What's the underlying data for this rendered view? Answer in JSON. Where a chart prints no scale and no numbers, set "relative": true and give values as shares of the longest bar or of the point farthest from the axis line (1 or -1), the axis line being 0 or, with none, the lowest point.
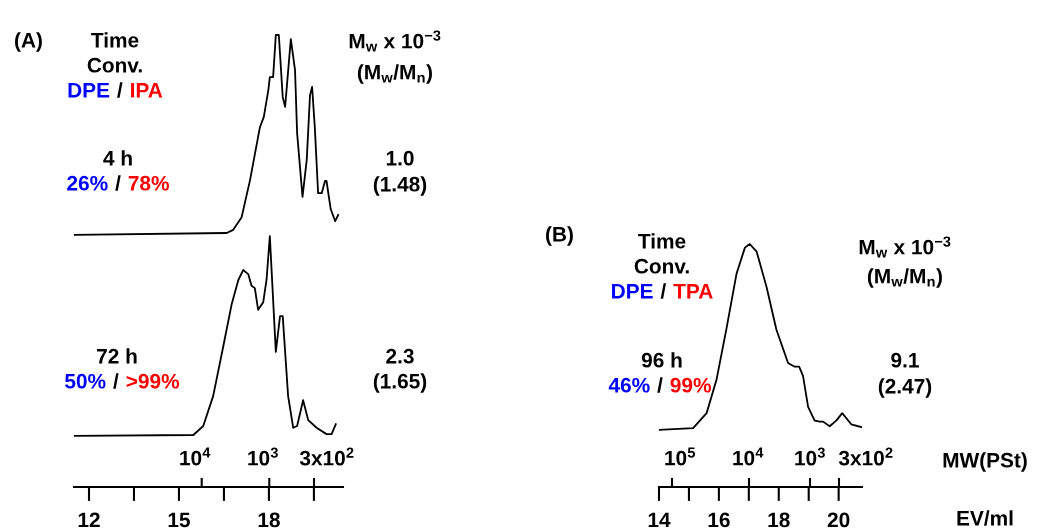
{
  "chart_data": [
    {
      "type": "line",
      "relative": true,
      "xlim": [
        11.5,
        20.47
      ],
      "xticks": [
        12,
        {
          "value": 13.5,
          "label": null
        },
        15,
        {
          "value": 16.5,
          "label": null
        },
        18,
        {
          "value": 19.5,
          "label": null
        }
      ],
      "series": [
        {
          "color": "#000000",
          "x": [
            11.5,
            16.59,
            16.81,
            17.09,
            17.37,
            17.7,
            17.83,
            17.98,
            18.03,
            18.14,
            18.23,
            18.33,
            18.46,
            18.54,
            18.73,
            18.87,
            18.94,
            19.12,
            19.26,
            19.37,
            19.44,
            19.53,
            19.64,
            19.76,
            19.87,
            19.92,
            20.06,
            20.21,
            20.31
          ],
          "values": [
            0.558,
            0.562,
            0.569,
            0.597,
            0.679,
            0.796,
            0.819,
            0.878,
            0.907,
            0.907,
            1.0,
            1.0,
            0.863,
            0.841,
            0.991,
            0.923,
            0.783,
            0.642,
            0.723,
            0.867,
            0.885,
            0.796,
            0.65,
            0.65,
            0.677,
            0.677,
            0.615,
            0.588,
            0.602
          ]
        },
        {
          "color": "#000000",
          "x": [
            11.5,
            15.48,
            15.81,
            16.14,
            16.48,
            16.76,
            16.98,
            17.14,
            17.31,
            17.42,
            17.53,
            17.64,
            17.81,
            17.92,
            18.03,
            18.23,
            18.37,
            18.46,
            18.64,
            18.81,
            18.94,
            19.14,
            19.31,
            19.59,
            19.92,
            20.09,
            20.23
          ],
          "values": [
            0.113,
            0.115,
            0.135,
            0.201,
            0.312,
            0.405,
            0.458,
            0.48,
            0.471,
            0.445,
            0.44,
            0.392,
            0.409,
            0.458,
            0.555,
            0.299,
            0.378,
            0.378,
            0.201,
            0.131,
            0.135,
            0.192,
            0.148,
            0.131,
            0.117,
            0.117,
            0.139
          ]
        }
      ],
      "annotations": [
        "(A)",
        "Time",
        "Conv.",
        "DPE",
        "/",
        "IPA",
        "4 h",
        "26%",
        "/",
        "78%",
        "M$_{w}$ x 10$^{−3}$",
        "(M$_{w}$/M$_{n}$)",
        "1.0",
        "(1.48)",
        "72 h",
        "50%",
        "/",
        ">99%",
        "2.3",
        "(1.65)",
        "10$^{4}$",
        "10$^{3}$",
        "3x10$^{2}$"
      ]
    },
    {
      "type": "line",
      "relative": true,
      "xlim": [
        14,
        20.78
      ],
      "xticks": [
        14,
        {
          "value": 15,
          "label": null
        },
        16,
        {
          "value": 17,
          "label": null
        },
        18,
        {
          "value": 19,
          "label": null
        },
        20
      ],
      "xlabel": "EV/ml",
      "series": [
        {
          "color": "#000000",
          "x": [
            14.0,
            15.14,
            15.59,
            15.92,
            16.26,
            16.59,
            16.87,
            17.03,
            17.26,
            17.59,
            17.92,
            18.31,
            18.53,
            18.68,
            18.81,
            18.98,
            19.2,
            19.37,
            19.48,
            19.7,
            19.92,
            20.12,
            20.42,
            20.78
          ],
          "values": [
            0.235,
            0.242,
            0.304,
            0.441,
            0.656,
            0.878,
            0.985,
            1.0,
            0.969,
            0.824,
            0.648,
            0.51,
            0.495,
            0.495,
            0.457,
            0.33,
            0.273,
            0.269,
            0.269,
            0.25,
            0.273,
            0.304,
            0.258,
            0.246
          ]
        }
      ],
      "annotations": [
        "(B)",
        "Time",
        "Conv.",
        "DPE",
        "/",
        "TPA",
        "96 h",
        "46%",
        "/",
        "99%",
        "M$_{w}$ x 10$^{−3}$",
        "(M$_{w}$/M$_{n}$)",
        "9.1",
        "(2.47)",
        "10$^{5}$",
        "10$^{4}$",
        "10$^{3}$",
        "3x10$^{2}$",
        "MW(PSt)"
      ]
    }
  ]
}
